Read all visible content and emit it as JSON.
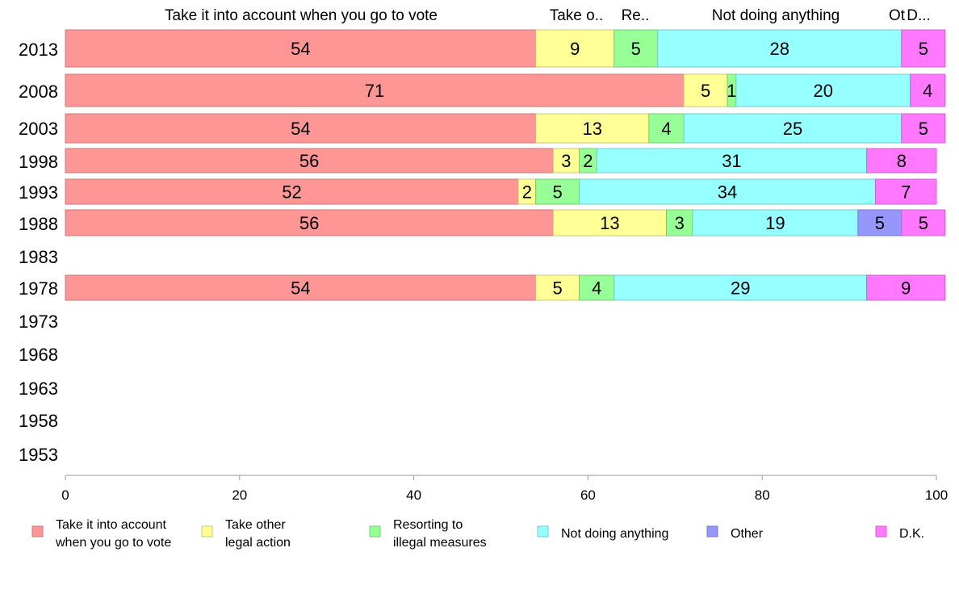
{
  "chart_data": {
    "type": "bar",
    "orientation": "horizontal",
    "stacked": true,
    "categories": [
      "2013",
      "2008",
      "2003",
      "1998",
      "1993",
      "1988",
      "1983",
      "1978",
      "1973",
      "1968",
      "1963",
      "1958",
      "1953"
    ],
    "series": [
      {
        "name": "Take it into account when you go to vote",
        "legend_lines": [
          "Take it into account",
          "when you go to vote"
        ],
        "header": "Take it into account when you go to vote",
        "color": "#ff9696",
        "border": "#c87878",
        "values": [
          54,
          71,
          54,
          56,
          52,
          56,
          null,
          54,
          null,
          null,
          null,
          null,
          null
        ]
      },
      {
        "name": "Take other legal action",
        "legend_lines": [
          "Take other",
          "legal action"
        ],
        "header": "Take o..",
        "color": "#ffff96",
        "border": "#c8c878",
        "values": [
          9,
          5,
          13,
          3,
          2,
          13,
          null,
          5,
          null,
          null,
          null,
          null,
          null
        ]
      },
      {
        "name": "Resorting to illegal measures",
        "legend_lines": [
          "Resorting to",
          "illegal measures"
        ],
        "header": "Re..",
        "color": "#96ff96",
        "border": "#78c878",
        "values": [
          5,
          1,
          4,
          2,
          5,
          3,
          null,
          4,
          null,
          null,
          null,
          null,
          null
        ]
      },
      {
        "name": "Not doing anything",
        "legend_lines": [
          "Not doing anything"
        ],
        "header": "Not doing anything",
        "color": "#96ffff",
        "border": "#78c8c8",
        "values": [
          28,
          20,
          25,
          31,
          34,
          19,
          null,
          29,
          null,
          null,
          null,
          null,
          null
        ]
      },
      {
        "name": "Other",
        "legend_lines": [
          "Other"
        ],
        "header": "Ot",
        "color": "#9696ff",
        "border": "#7878c8",
        "values": [
          0,
          0,
          0,
          0,
          0,
          5,
          null,
          0,
          null,
          null,
          null,
          null,
          null
        ]
      },
      {
        "name": "D.K.",
        "legend_lines": [
          "D.K."
        ],
        "header": "D...",
        "color": "#ff78ff",
        "border": "#c864c8",
        "values": [
          5,
          4,
          5,
          8,
          7,
          5,
          null,
          9,
          null,
          null,
          null,
          null,
          null
        ]
      }
    ],
    "xlim": [
      0,
      100
    ],
    "xticks": [
      0,
      20,
      40,
      60,
      80,
      100
    ],
    "grid": false,
    "legend_position": "bottom"
  }
}
